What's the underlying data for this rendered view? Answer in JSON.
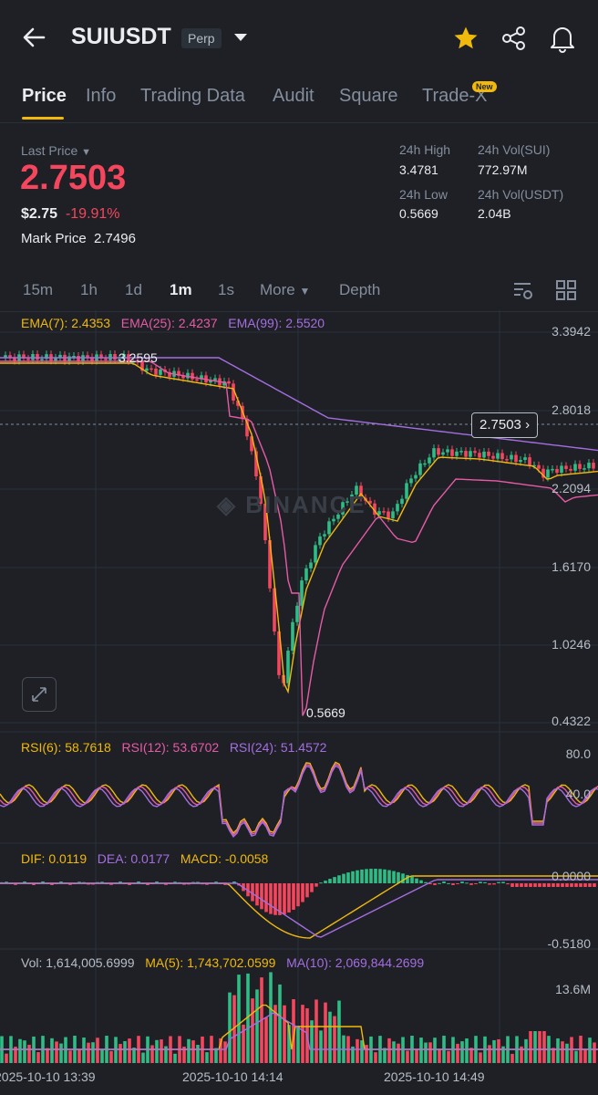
{
  "header": {
    "symbol": "SUIUSDT",
    "contract_type": "Perp",
    "icons": [
      "back-arrow-icon",
      "chevron-down-icon",
      "star-icon",
      "share-icon",
      "bell-icon"
    ]
  },
  "tabs": [
    {
      "label": "Price",
      "active": true
    },
    {
      "label": "Info"
    },
    {
      "label": "Trading Data"
    },
    {
      "label": "Audit"
    },
    {
      "label": "Square"
    },
    {
      "label": "Trade-X",
      "badge": "New"
    }
  ],
  "ticker": {
    "last_price_label": "Last Price",
    "last_price": "2.7503",
    "usd_price": "$2.75",
    "change_pct": "-19.91%",
    "mark_price_label": "Mark Price",
    "mark_price": "2.7496",
    "high_label": "24h High",
    "high": "3.4781",
    "vol_sui_label": "24h Vol(SUI)",
    "vol_sui": "772.97M",
    "low_label": "24h Low",
    "low": "0.5669",
    "vol_usdt_label": "24h Vol(USDT)",
    "vol_usdt": "2.04B"
  },
  "timeframes": {
    "items": [
      "15m",
      "1h",
      "1d",
      "1m",
      "1s"
    ],
    "active": "1m",
    "more": "More",
    "depth": "Depth"
  },
  "colors": {
    "up": "#2ebd85",
    "down": "#f6465d",
    "ema7": "#f0b90b",
    "ema25": "#e75aa6",
    "ema99": "#a46ee0",
    "accent": "#f0b90b"
  },
  "chart_data": [
    {
      "type": "candlestick",
      "legend": {
        "ema7": "EMA(7): 2.4353",
        "ema25": "EMA(25): 2.4237",
        "ema99": "EMA(99): 2.5520"
      },
      "y_ticks": [
        "3.3942",
        "2.8018",
        "2.2094",
        "1.6170",
        "1.0246",
        "0.4322"
      ],
      "ylim": [
        0.4322,
        3.3942
      ],
      "current_price_tag": "2.7503",
      "high_annotation": "3.2595",
      "low_annotation": "0.5669",
      "x_ticks": [
        "2025-10-10 13:39",
        "2025-10-10 14:14",
        "2025-10-10 14:49"
      ],
      "watermark": "BINANCE"
    },
    {
      "type": "line",
      "legend": {
        "rsi6": "RSI(6): 58.7618",
        "rsi12": "RSI(12): 53.6702",
        "rsi24": "RSI(24): 51.4572"
      },
      "y_ticks": [
        "80.0",
        "40.0"
      ]
    },
    {
      "type": "bar",
      "legend": {
        "dif": "DIF: 0.0119",
        "dea": "DEA: 0.0177",
        "macd": "MACD: -0.0058"
      },
      "y_ticks": [
        "0.0000",
        "-0.5180"
      ]
    },
    {
      "type": "bar",
      "legend": {
        "vol": "Vol: 1,614,005.6999",
        "ma5": "MA(5): 1,743,702.0599",
        "ma10": "MA(10): 2,069,844.2699"
      },
      "y_ticks": [
        "13.6M"
      ]
    }
  ]
}
